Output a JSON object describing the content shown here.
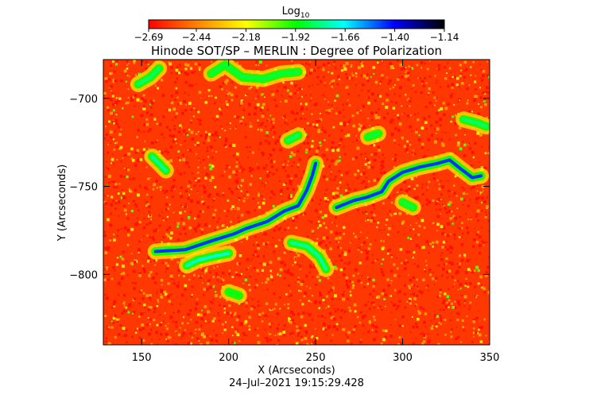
{
  "chart_data": {
    "type": "heatmap",
    "title": "Hinode SOT/SP – MERLIN : Degree of Polarization",
    "xlabel": "X (Arcseconds)",
    "ylabel": "Y (Arcseconds)",
    "timestamp": "24–Jul–2021  19:15:29.428",
    "xlim": [
      128,
      350
    ],
    "ylim": [
      -840,
      -678
    ],
    "x_ticks": [
      150,
      200,
      250,
      300,
      350
    ],
    "x_tick_labels": [
      "150",
      "200",
      "250",
      "300",
      "350"
    ],
    "y_ticks": [
      -700,
      -750,
      -800
    ],
    "y_tick_labels": [
      "−700",
      "−750",
      "−800"
    ],
    "colorbar": {
      "label_main": "Log",
      "label_sub": "10",
      "range": [
        -2.69,
        -1.14
      ],
      "ticks": [
        -2.69,
        -2.44,
        -2.18,
        -1.92,
        -1.66,
        -1.4,
        -1.14
      ],
      "tick_labels": [
        "−2.69",
        "−2.44",
        "−2.18",
        "−1.92",
        "−1.66",
        "−1.40",
        "−1.14"
      ],
      "colors": [
        "#ff0000",
        "#ff8000",
        "#ffff00",
        "#00ff00",
        "#00ffff",
        "#0000ff",
        "#000000"
      ]
    },
    "grid": false,
    "background_level": -2.58,
    "features": [
      {
        "name": "central-network-lane",
        "level": -1.45,
        "points": [
          [
            158,
            -787
          ],
          [
            175,
            -786
          ],
          [
            190,
            -781
          ],
          [
            203,
            -777
          ],
          [
            210,
            -774
          ],
          [
            222,
            -770
          ],
          [
            232,
            -764
          ],
          [
            240,
            -761
          ],
          [
            245,
            -752
          ],
          [
            248,
            -744
          ],
          [
            250,
            -737
          ]
        ]
      },
      {
        "name": "upper-right-network-lane",
        "level": -1.45,
        "points": [
          [
            262,
            -762
          ],
          [
            272,
            -758
          ],
          [
            280,
            -756
          ],
          [
            288,
            -753
          ],
          [
            292,
            -747
          ],
          [
            300,
            -742
          ],
          [
            310,
            -739
          ],
          [
            320,
            -737
          ],
          [
            327,
            -735
          ],
          [
            332,
            -739
          ],
          [
            340,
            -745
          ],
          [
            345,
            -744
          ]
        ]
      },
      {
        "name": "lower-left-plage",
        "level": -1.7,
        "points": [
          [
            176,
            -795
          ],
          [
            182,
            -792
          ],
          [
            190,
            -790
          ],
          [
            200,
            -788
          ]
        ]
      },
      {
        "name": "mid-branch",
        "level": -1.75,
        "points": [
          [
            236,
            -782
          ],
          [
            245,
            -784
          ],
          [
            252,
            -790
          ],
          [
            256,
            -797
          ]
        ]
      },
      {
        "name": "upper-left-patch",
        "level": -1.8,
        "points": [
          [
            148,
            -692
          ],
          [
            155,
            -688
          ],
          [
            160,
            -683
          ]
        ]
      },
      {
        "name": "upper-center-patch",
        "level": -1.85,
        "points": [
          [
            190,
            -686
          ],
          [
            198,
            -681
          ],
          [
            208,
            -688
          ],
          [
            220,
            -689
          ],
          [
            230,
            -686
          ],
          [
            240,
            -685
          ]
        ]
      },
      {
        "name": "left-patch",
        "level": -1.75,
        "points": [
          [
            156,
            -733
          ],
          [
            160,
            -737
          ],
          [
            164,
            -741
          ]
        ]
      },
      {
        "name": "right-edge-patch",
        "level": -1.8,
        "points": [
          [
            335,
            -712
          ],
          [
            343,
            -714
          ],
          [
            348,
            -716
          ]
        ]
      },
      {
        "name": "small-patch-a",
        "level": -1.8,
        "points": [
          [
            234,
            -724
          ],
          [
            240,
            -721
          ]
        ]
      },
      {
        "name": "small-patch-b",
        "level": -1.85,
        "points": [
          [
            300,
            -759
          ],
          [
            306,
            -762
          ]
        ]
      },
      {
        "name": "small-patch-c",
        "level": -1.85,
        "points": [
          [
            280,
            -722
          ],
          [
            286,
            -720
          ]
        ]
      },
      {
        "name": "small-patch-d",
        "level": -1.9,
        "points": [
          [
            200,
            -810
          ],
          [
            206,
            -812
          ]
        ]
      }
    ]
  }
}
